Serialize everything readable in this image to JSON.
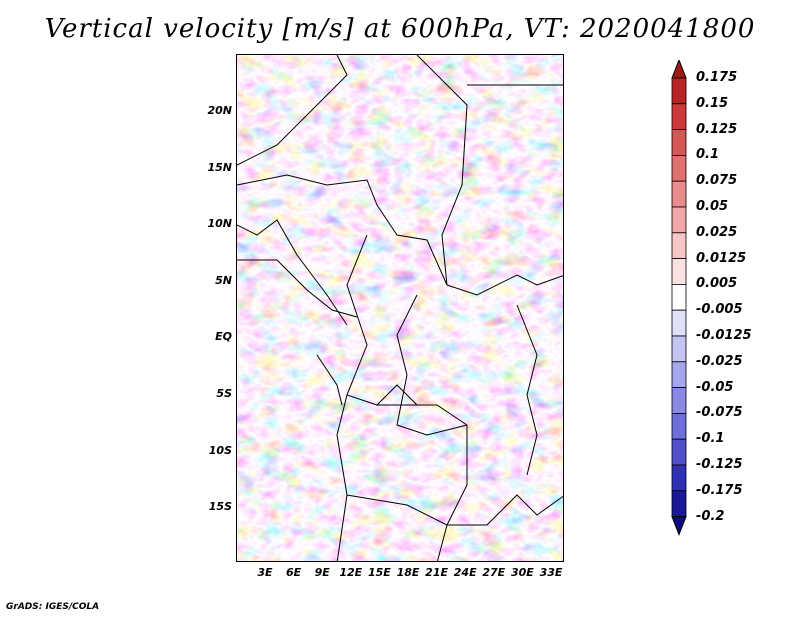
{
  "title": "Vertical velocity [m/s] at 600hPa, VT: 2020041800",
  "credit": "GrADS: IGES/COLA",
  "map": {
    "lat_labels": [
      "20N",
      "15N",
      "10N",
      "5N",
      "EQ",
      "5S",
      "10S",
      "15S"
    ],
    "lon_labels": [
      "3E",
      "6E",
      "9E",
      "12E",
      "15E",
      "18E",
      "21E",
      "24E",
      "27E",
      "30E",
      "33E"
    ],
    "lat_range": [
      -20,
      25
    ],
    "lon_range": [
      0,
      34.5
    ]
  },
  "colorbar": {
    "labels": [
      "0.175",
      "0.15",
      "0.125",
      "0.1",
      "0.075",
      "0.05",
      "0.025",
      "0.0125",
      "0.005",
      "-0.005",
      "-0.0125",
      "-0.025",
      "-0.05",
      "-0.075",
      "-0.1",
      "-0.125",
      "-0.175",
      "-0.2"
    ],
    "colors": [
      "#a01818",
      "#b92424",
      "#cc3a3a",
      "#d95656",
      "#e27070",
      "#ea8c8c",
      "#f1a8a8",
      "#f7c6c6",
      "#fbe2e2",
      "#ffffff",
      "#e0e0f8",
      "#c4c4f2",
      "#a6a6ec",
      "#8a8ae4",
      "#6e6edc",
      "#5050cc",
      "#3030b4",
      "#181898",
      "#0c0c80"
    ]
  }
}
